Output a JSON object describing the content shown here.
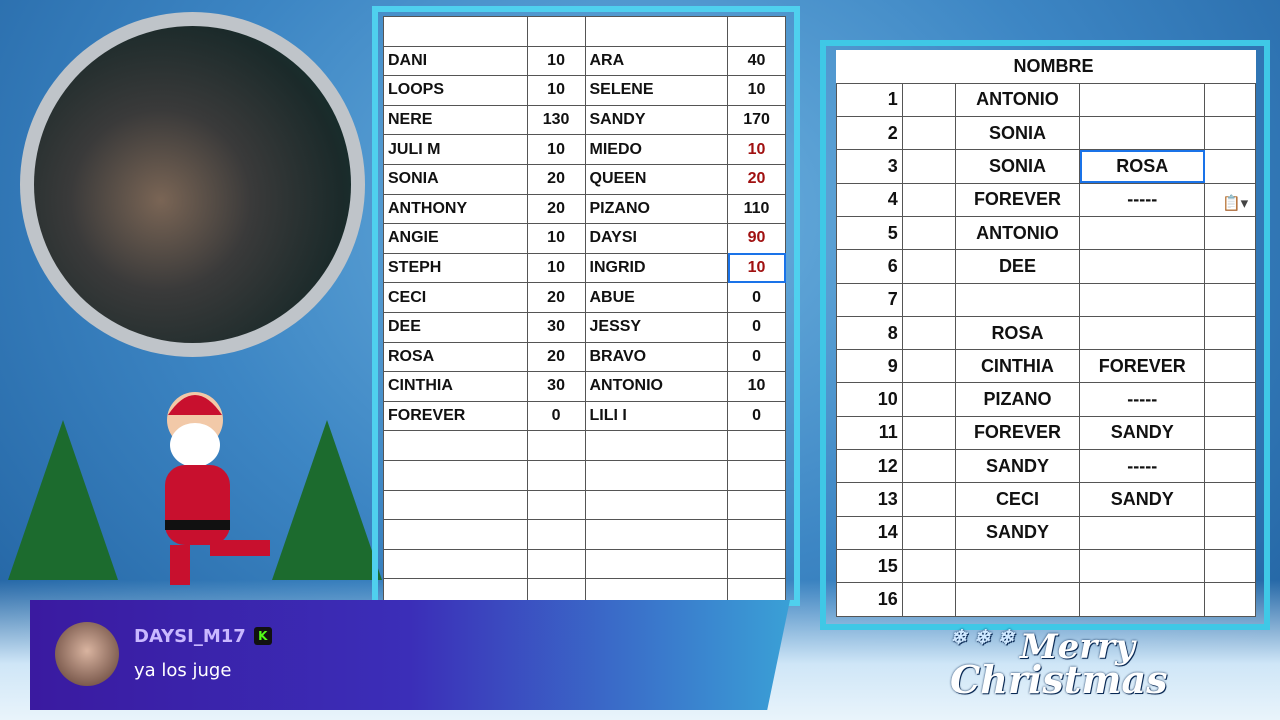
{
  "left_sheet": {
    "rows": [
      [
        "DANI",
        "10",
        "ARA",
        "40"
      ],
      [
        "LOOPS",
        "10",
        "SELENE",
        "10"
      ],
      [
        "NERE",
        "130",
        "SANDY",
        "170"
      ],
      [
        "JULI M",
        "10",
        "MIEDO",
        "10"
      ],
      [
        "SONIA",
        "20",
        "QUEEN",
        "20"
      ],
      [
        "ANTHONY",
        "20",
        "PIZANO",
        "110"
      ],
      [
        "ANGIE",
        "10",
        "DAYSI",
        "90"
      ],
      [
        "STEPH",
        "10",
        "INGRID",
        "10"
      ],
      [
        "CECI",
        "20",
        "ABUE",
        "0"
      ],
      [
        "DEE",
        "30",
        "JESSY",
        "0"
      ],
      [
        "ROSA",
        "20",
        "BRAVO",
        "0"
      ],
      [
        "CINTHIA",
        "30",
        "ANTONIO",
        "10"
      ],
      [
        "FOREVER",
        "0",
        "LILI I",
        "0"
      ]
    ],
    "red_rows": [
      3,
      4,
      6,
      7
    ],
    "selected_row": 7,
    "text_red": "#a01010"
  },
  "right_sheet": {
    "header": "NOMBRE",
    "rows": [
      [
        "1",
        "ANTONIO",
        ""
      ],
      [
        "2",
        "SONIA",
        ""
      ],
      [
        "3",
        "SONIA",
        "ROSA"
      ],
      [
        "4",
        "FOREVER",
        "-----"
      ],
      [
        "5",
        "ANTONIO",
        ""
      ],
      [
        "6",
        "DEE",
        ""
      ],
      [
        "7",
        "",
        ""
      ],
      [
        "8",
        "ROSA",
        ""
      ],
      [
        "9",
        "CINTHIA",
        "FOREVER"
      ],
      [
        "10",
        "PIZANO",
        "-----"
      ],
      [
        "11",
        "FOREVER",
        "SANDY"
      ],
      [
        "12",
        "SANDY",
        "-----"
      ],
      [
        "13",
        "CECI",
        "SANDY"
      ],
      [
        "14",
        "SANDY",
        ""
      ],
      [
        "15",
        "",
        ""
      ],
      [
        "16",
        "",
        ""
      ]
    ],
    "selected_row": 2
  },
  "chat": {
    "username": "DAYSI_M17",
    "badge": "K",
    "message": "ya los juge"
  },
  "decor": {
    "greeting_line1": "Merry",
    "greeting_line2": "Christmas"
  }
}
